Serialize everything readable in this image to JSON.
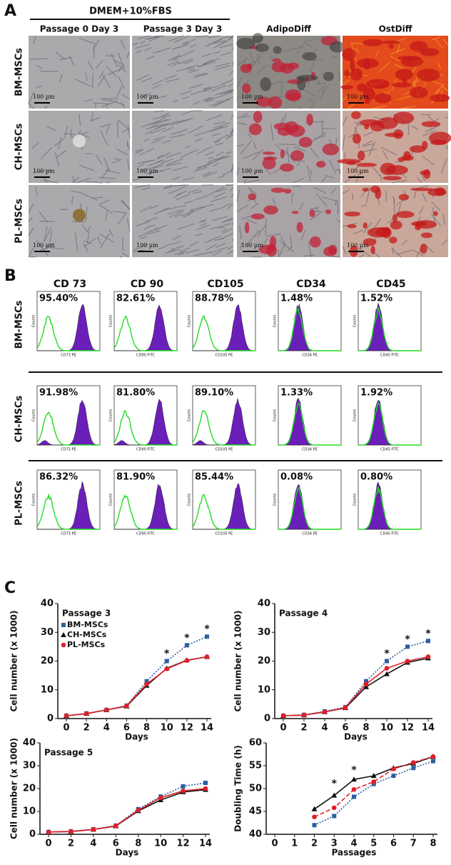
{
  "panel_a": {
    "label": "A",
    "group_header": "DMEM+10%FBS",
    "columns": [
      "Passage 0  Day 3",
      "Passage 3  Day 3",
      "AdipoDiff",
      "OstDiff"
    ],
    "rows": [
      "BM-MSCs",
      "CH-MSCs",
      "PL-MSCs"
    ],
    "scale_bar": "100 µm"
  },
  "panel_b": {
    "label": "B",
    "markers": [
      "CD 73",
      "CD 90",
      "CD105",
      "CD34",
      "CD45"
    ],
    "axis_labels": [
      "CD73 PE",
      "CD90 FITC",
      "CD105 PE",
      "CD34 PE",
      "CD45 FITC"
    ],
    "y_label": "Counts",
    "rows": [
      {
        "name": "BM-MSCs",
        "percents": [
          "95.40%",
          "82.61%",
          "88.78%",
          "1.48%",
          "1.52%"
        ]
      },
      {
        "name": "CH-MSCs",
        "percents": [
          "91.98%",
          "81.80%",
          "89.10%",
          "1.33%",
          "1.92%"
        ]
      },
      {
        "name": "PL-MSCs",
        "percents": [
          "86.32%",
          "81.90%",
          "85.44%",
          "0.08%",
          "0.80%"
        ]
      }
    ]
  },
  "panel_c": {
    "label": "C"
  },
  "chart_data": [
    {
      "type": "line",
      "title": "Passage 3",
      "x_label": "Days",
      "y_label": "Cell number (x 1000)",
      "legend": true,
      "x": [
        0,
        2,
        4,
        6,
        8,
        10,
        12,
        14
      ],
      "xlim": [
        0,
        14
      ],
      "xticks": [
        0,
        2,
        4,
        6,
        8,
        10,
        12,
        14
      ],
      "ylim": [
        0,
        40
      ],
      "yticks": [
        0,
        10,
        20,
        30,
        40
      ],
      "series": [
        {
          "name": "BM-MSCs",
          "color": "#2e5e9e",
          "marker": "square",
          "dash": "dotted",
          "values": [
            1,
            1.8,
            3,
            4.5,
            13,
            20,
            25.5,
            28.5
          ]
        },
        {
          "name": "CH-MSCs",
          "color": "#111111",
          "marker": "triangle",
          "dash": "solid",
          "values": [
            1,
            1.7,
            3,
            4.3,
            11.5,
            17.5,
            20.3,
            21.5
          ]
        },
        {
          "name": "PL-MSCs",
          "color": "#e0202a",
          "marker": "circle",
          "dash": "solid",
          "values": [
            1,
            1.7,
            3,
            4.4,
            12,
            17.3,
            20.2,
            21.5
          ]
        }
      ],
      "annotations": [
        {
          "text": "*",
          "x": 10,
          "y": 22.5
        },
        {
          "text": "*",
          "x": 12,
          "y": 28
        },
        {
          "text": "*",
          "x": 14,
          "y": 31
        }
      ]
    },
    {
      "type": "line",
      "title": "Passage 4",
      "x_label": "Days",
      "y_label": "Cell number (x 1000)",
      "legend": false,
      "x": [
        0,
        2,
        4,
        6,
        8,
        10,
        12,
        14
      ],
      "xlim": [
        0,
        14
      ],
      "xticks": [
        0,
        2,
        4,
        6,
        8,
        10,
        12,
        14
      ],
      "ylim": [
        0,
        40
      ],
      "yticks": [
        0,
        10,
        20,
        30,
        40
      ],
      "series": [
        {
          "name": "BM-MSCs",
          "color": "#2e5e9e",
          "marker": "square",
          "dash": "dotted",
          "values": [
            1,
            1.3,
            2.5,
            4,
            13,
            20,
            25,
            27
          ]
        },
        {
          "name": "CH-MSCs",
          "color": "#111111",
          "marker": "triangle",
          "dash": "solid",
          "values": [
            1,
            1.2,
            2.3,
            3.7,
            11,
            15.5,
            19.5,
            21
          ]
        },
        {
          "name": "PL-MSCs",
          "color": "#e0202a",
          "marker": "circle",
          "dash": "solid",
          "values": [
            1,
            1.2,
            2.3,
            3.8,
            12,
            17.5,
            20,
            21.5
          ]
        }
      ],
      "annotations": [
        {
          "text": "*",
          "x": 10,
          "y": 22.5
        },
        {
          "text": "*",
          "x": 12,
          "y": 27.5
        },
        {
          "text": "*",
          "x": 14,
          "y": 29.5
        }
      ]
    },
    {
      "type": "line",
      "title": "Passage 5",
      "x_label": "Days",
      "y_label": "Cell number (x 1000)",
      "legend": false,
      "x": [
        0,
        2,
        4,
        6,
        8,
        10,
        12,
        14
      ],
      "xlim": [
        0,
        14
      ],
      "xticks": [
        0,
        2,
        4,
        6,
        8,
        10,
        12,
        14
      ],
      "ylim": [
        0,
        40
      ],
      "yticks": [
        0,
        10,
        20,
        30,
        40
      ],
      "series": [
        {
          "name": "BM-MSCs",
          "color": "#2e5e9e",
          "marker": "square",
          "dash": "dotted",
          "values": [
            1,
            1.3,
            2.2,
            3.8,
            11,
            16.5,
            21,
            22.5
          ]
        },
        {
          "name": "CH-MSCs",
          "color": "#111111",
          "marker": "triangle",
          "dash": "solid",
          "values": [
            1,
            1.2,
            2.1,
            3.6,
            10.2,
            15,
            18.5,
            19.5
          ]
        },
        {
          "name": "PL-MSCs",
          "color": "#e0202a",
          "marker": "circle",
          "dash": "solid",
          "values": [
            1,
            1.2,
            2.1,
            3.7,
            10.5,
            16,
            19,
            20
          ]
        }
      ],
      "annotations": []
    },
    {
      "type": "line",
      "x_label": "Passages",
      "y_label": "Doubling Time (h)",
      "legend": false,
      "x": [
        2,
        3,
        4,
        5,
        6,
        7,
        8
      ],
      "xlim": [
        0,
        8
      ],
      "xticks": [
        0,
        1,
        2,
        3,
        4,
        5,
        6,
        7,
        8
      ],
      "ylim": [
        40,
        60
      ],
      "yticks": [
        40,
        45,
        50,
        55,
        60
      ],
      "series": [
        {
          "name": "BM-MSCs",
          "color": "#2e5e9e",
          "marker": "square",
          "dash": "dotted",
          "values": [
            42,
            44,
            48.2,
            51,
            52.8,
            54.5,
            56
          ]
        },
        {
          "name": "CH-MSCs",
          "color": "#111111",
          "marker": "triangle",
          "dash": "solid",
          "values": [
            45.5,
            48.5,
            52,
            52.8,
            54.5,
            55.5,
            57
          ]
        },
        {
          "name": "PL-MSCs",
          "color": "#e0202a",
          "marker": "circle",
          "dash": "dashed",
          "values": [
            43.8,
            45.8,
            49.8,
            51.5,
            54.3,
            55.7,
            57
          ]
        }
      ],
      "annotations": [
        {
          "text": "*",
          "x": 3,
          "y": 51
        },
        {
          "text": "*",
          "x": 4,
          "y": 54
        }
      ]
    }
  ]
}
